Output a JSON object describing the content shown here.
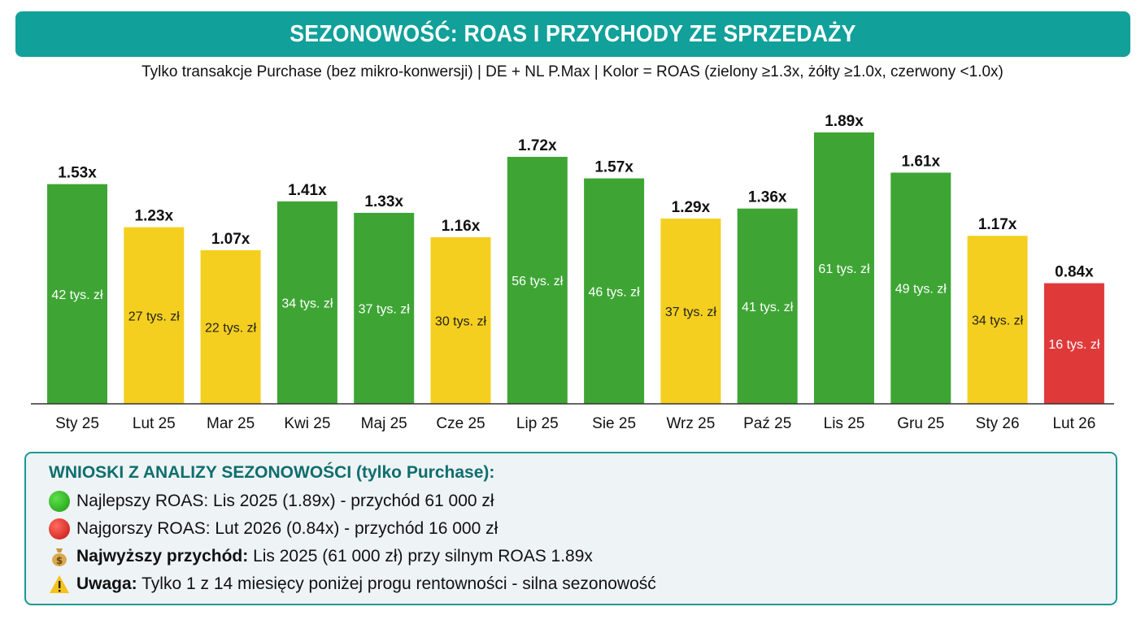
{
  "title": "SEZONOWOŚĆ: ROAS I PRZYCHODY ZE SPRZEDAŻY",
  "subtitle": "Tylko transakcje Purchase (bez mikro-konwersji) | DE + NL P.Max | Kolor = ROAS (zielony ≥1.3x, żółty ≥1.0x, czerwony <1.0x)",
  "colors": {
    "header": "#11a09a",
    "green": "#3ea535",
    "yellow": "#f5cf1f",
    "red": "#e0393a"
  },
  "chart_data": {
    "type": "bar",
    "categories": [
      "Sty 25",
      "Lut 25",
      "Mar 25",
      "Kwi 25",
      "Maj 25",
      "Cze 25",
      "Lip 25",
      "Sie 25",
      "Wrz 25",
      "Paź 25",
      "Lis 25",
      "Gru 25",
      "Sty 26",
      "Lut 26"
    ],
    "series": [
      {
        "metric": "ROAS",
        "values": [
          1.53,
          1.23,
          1.07,
          1.41,
          1.33,
          1.16,
          1.72,
          1.57,
          1.29,
          1.36,
          1.89,
          1.61,
          1.17,
          0.84
        ],
        "labels": [
          "1.53x",
          "1.23x",
          "1.07x",
          "1.41x",
          "1.33x",
          "1.16x",
          "1.72x",
          "1.57x",
          "1.29x",
          "1.36x",
          "1.89x",
          "1.61x",
          "1.17x",
          "0.84x"
        ]
      },
      {
        "metric": "Przychód",
        "values": [
          42,
          27,
          22,
          34,
          37,
          30,
          56,
          46,
          37,
          41,
          61,
          49,
          34,
          16
        ],
        "labels": [
          "42 tys. zł",
          "27 tys. zł",
          "22 tys. zł",
          "34 tys. zł",
          "37 tys. zł",
          "30 tys. zł",
          "56 tys. zł",
          "46 tys. zł",
          "37 tys. zł",
          "41 tys. zł",
          "61 tys. zł",
          "49 tys. zł",
          "34 tys. zł",
          "16 tys. zł"
        ]
      }
    ],
    "thresholds": {
      "green": 1.3,
      "yellow": 1.0
    },
    "ylim": [
      0,
      1.89
    ],
    "grid": false,
    "legend": "none"
  },
  "insights": {
    "heading": "WNIOSKI Z ANALIZY SEZONOWOŚCI (tylko Purchase):",
    "items": [
      {
        "icon": "green-circle-icon",
        "bold": "",
        "text": "Najlepszy ROAS: Lis 2025 (1.89x) - przychód 61 000 zł"
      },
      {
        "icon": "red-circle-icon",
        "bold": "",
        "text": "Najgorszy ROAS: Lut 2026 (0.84x) - przychód 16 000 zł"
      },
      {
        "icon": "money-bag-icon",
        "bold": "Najwyższy przychód:",
        "text": " Lis 2025 (61 000 zł) przy silnym ROAS 1.89x"
      },
      {
        "icon": "warning-icon",
        "bold": "Uwaga:",
        "text": " Tylko 1 z 14 miesięcy poniżej progu rentowności - silna sezonowość"
      }
    ]
  }
}
